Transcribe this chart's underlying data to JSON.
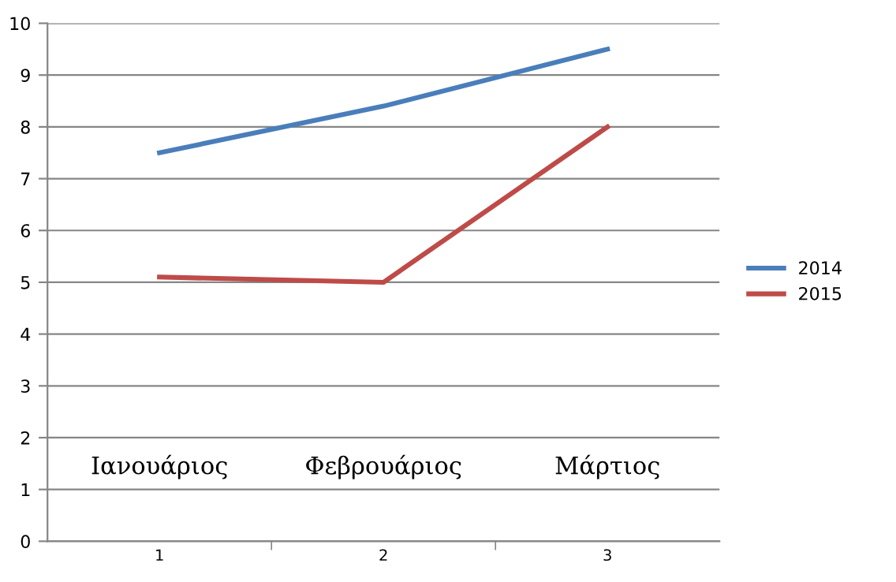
{
  "chart_data": {
    "type": "line",
    "categories": [
      "1",
      "2",
      "3"
    ],
    "series": [
      {
        "name": "2014",
        "color": "#4a7ebb",
        "values": [
          7.5,
          8.4,
          9.5
        ]
      },
      {
        "name": "2015",
        "color": "#be4b48",
        "values": [
          5.1,
          5.0,
          8.0
        ]
      }
    ],
    "ylim": [
      0,
      10
    ],
    "yticks": [
      0,
      1,
      2,
      3,
      4,
      5,
      6,
      7,
      8,
      9,
      10
    ],
    "grid": "y",
    "legend": "right",
    "marker": "none",
    "annotations": [
      "Ιανουάριος",
      "Φεβρουάριος",
      "Μάρτιος"
    ]
  }
}
